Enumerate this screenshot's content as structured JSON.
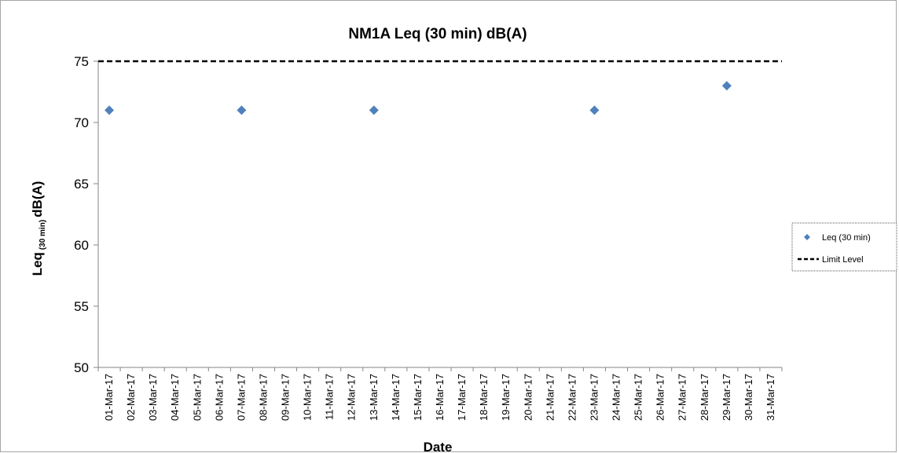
{
  "chart_data": {
    "type": "scatter",
    "title": "NM1A Leq (30 min) dB(A)",
    "xlabel": "Date",
    "ylabel_main": "Leq",
    "ylabel_sub": "(30 min)",
    "ylabel_tail": "dB(A)",
    "ylim": [
      50,
      75
    ],
    "yticks": [
      50,
      55,
      60,
      65,
      70,
      75
    ],
    "categories": [
      "01-Mar-17",
      "02-Mar-17",
      "03-Mar-17",
      "04-Mar-17",
      "05-Mar-17",
      "06-Mar-17",
      "07-Mar-17",
      "08-Mar-17",
      "09-Mar-17",
      "10-Mar-17",
      "11-Mar-17",
      "12-Mar-17",
      "13-Mar-17",
      "14-Mar-17",
      "15-Mar-17",
      "16-Mar-17",
      "17-Mar-17",
      "18-Mar-17",
      "19-Mar-17",
      "20-Mar-17",
      "21-Mar-17",
      "22-Mar-17",
      "23-Mar-17",
      "24-Mar-17",
      "25-Mar-17",
      "26-Mar-17",
      "27-Mar-17",
      "28-Mar-17",
      "29-Mar-17",
      "30-Mar-17",
      "31-Mar-17"
    ],
    "series": [
      {
        "name": "Leq (30 min)",
        "marker": "diamond",
        "color": "#4f81bd",
        "points": [
          {
            "x": "01-Mar-17",
            "y": 71
          },
          {
            "x": "07-Mar-17",
            "y": 71
          },
          {
            "x": "13-Mar-17",
            "y": 71
          },
          {
            "x": "23-Mar-17",
            "y": 71
          },
          {
            "x": "29-Mar-17",
            "y": 73
          }
        ]
      },
      {
        "name": "Limit Level",
        "style": "dashed",
        "color": "#000000",
        "value": 75
      }
    ],
    "legend_position": "right",
    "grid": false
  }
}
